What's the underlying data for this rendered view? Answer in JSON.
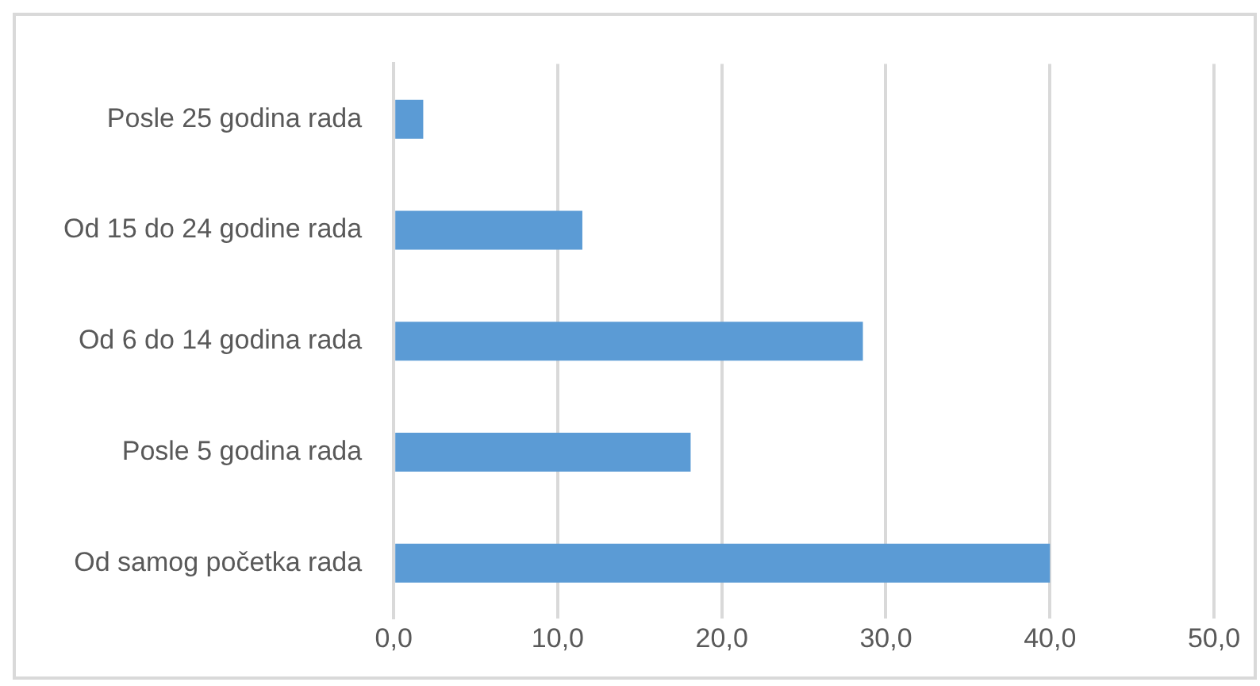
{
  "chart_data": {
    "type": "bar",
    "orientation": "horizontal",
    "categories": [
      "Posle 25 godina rada",
      "Od 15 do 24 godine rada",
      "Od 6 do 14 godina rada",
      "Posle 5 godina rada",
      "Od samog početka rada"
    ],
    "values": [
      1.8,
      11.5,
      28.6,
      18.1,
      40.0
    ],
    "color": "#5b9bd5",
    "xlim": [
      0,
      50
    ],
    "xticks": [
      {
        "value": 0,
        "label": "0,0"
      },
      {
        "value": 10,
        "label": "10,0"
      },
      {
        "value": 20,
        "label": "20,0"
      },
      {
        "value": 30,
        "label": "30,0"
      },
      {
        "value": 40,
        "label": "40,0"
      },
      {
        "value": 50,
        "label": "50,0"
      }
    ],
    "grid": "x",
    "legend": false
  }
}
